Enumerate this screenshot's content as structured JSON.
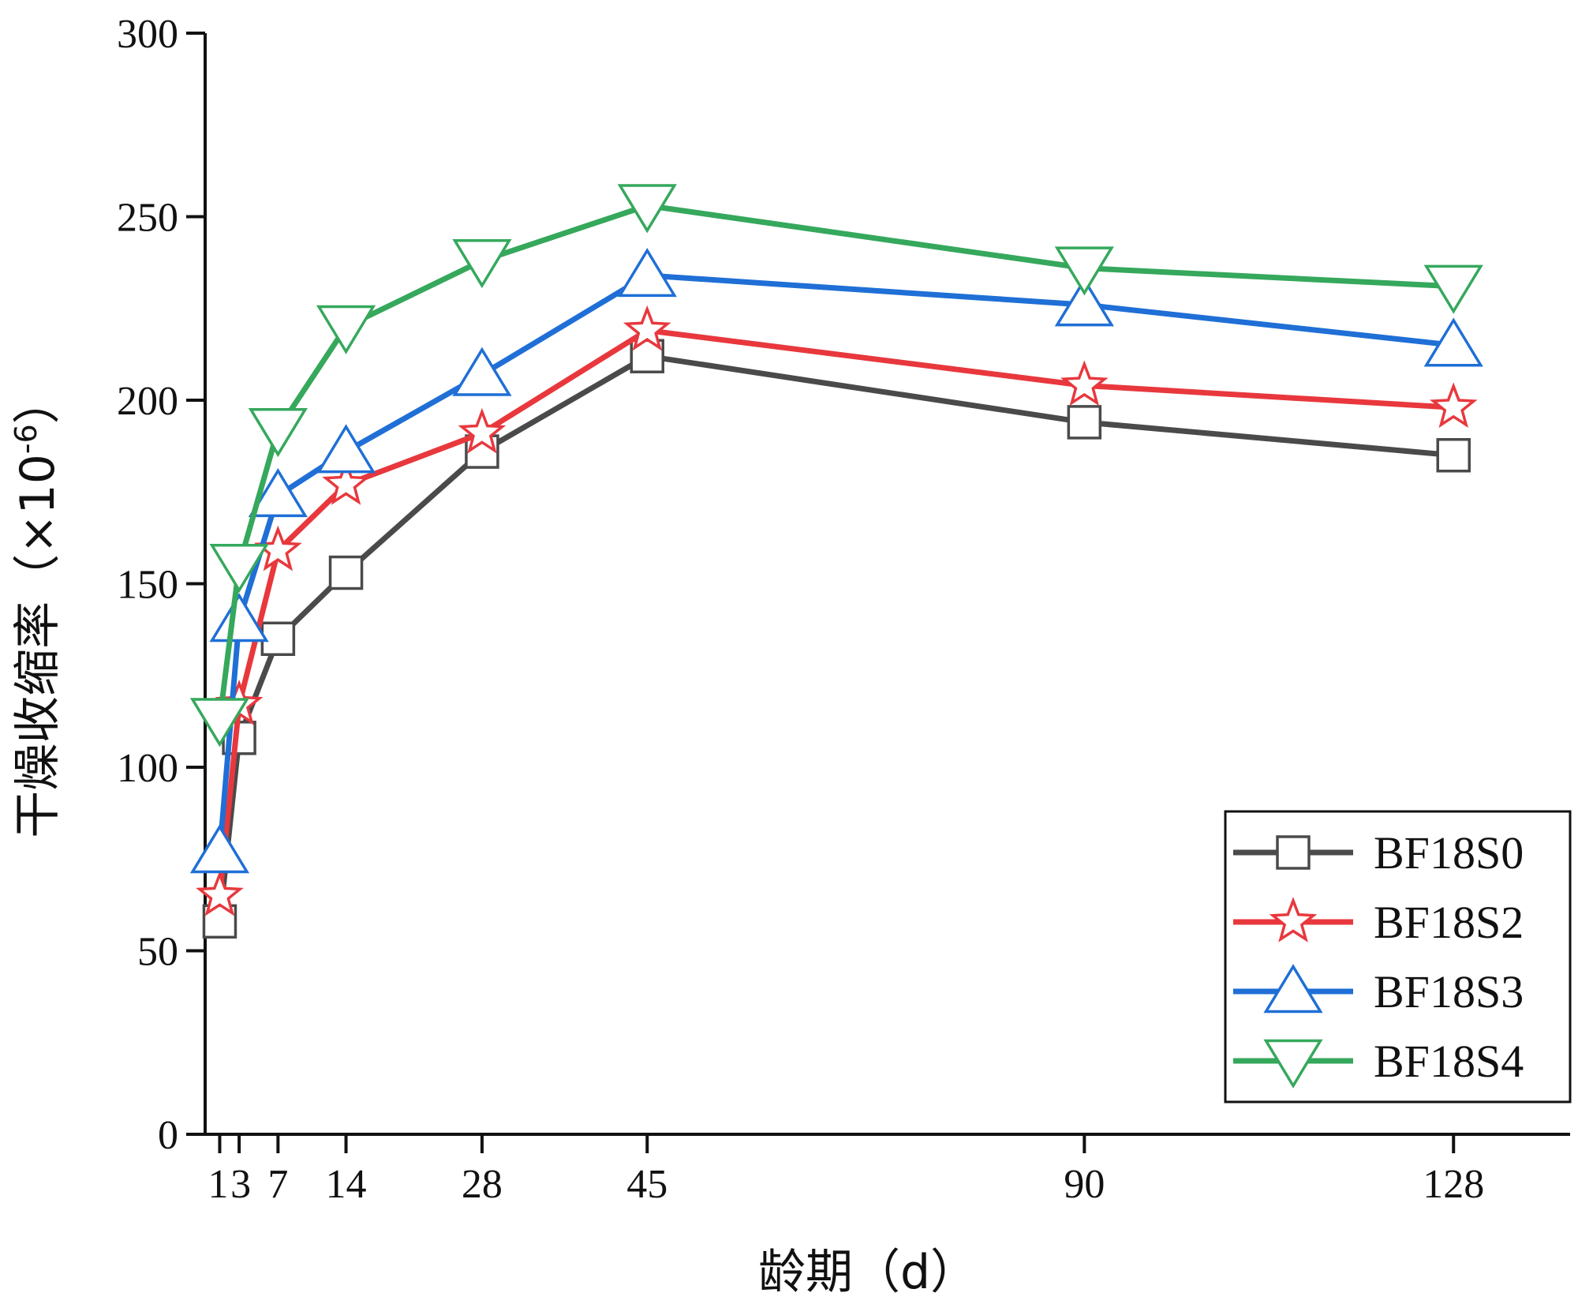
{
  "chart_data": {
    "type": "line",
    "title": "",
    "xlabel": "龄期（d）",
    "ylabel": "干燥收缩率（×10⁻⁶）",
    "ylabel_main": "干燥收缩率（×10",
    "ylabel_exp": "-6",
    "ylabel_tail": "）",
    "x": [
      1,
      3,
      7,
      14,
      28,
      45,
      90,
      128
    ],
    "x_tick_labels": [
      "1",
      "3",
      "7",
      "14",
      "28",
      "45",
      "90",
      "128"
    ],
    "xlim": [
      -0.5,
      140
    ],
    "ylim": [
      0,
      300
    ],
    "y_ticks": [
      0,
      50,
      100,
      150,
      200,
      250,
      300
    ],
    "y_tick_labels": [
      "0",
      "50",
      "100",
      "150",
      "200",
      "250",
      "300"
    ],
    "grid": false,
    "legend_position": "bottom-right",
    "series": [
      {
        "name": "BF18S0",
        "marker": "square",
        "color": "#4a4a4a",
        "values": [
          58,
          108,
          135,
          153,
          186,
          212,
          194,
          185
        ]
      },
      {
        "name": "BF18S2",
        "marker": "star",
        "color": "#e8383d",
        "values": [
          65,
          117,
          159,
          177,
          191,
          219,
          204,
          198
        ]
      },
      {
        "name": "BF18S3",
        "marker": "triangle-up",
        "color": "#1f6fd6",
        "values": [
          77,
          140,
          174,
          186,
          207,
          234,
          226,
          215
        ]
      },
      {
        "name": "BF18S4",
        "marker": "triangle-down",
        "color": "#35a85c",
        "values": [
          113,
          155,
          192,
          220,
          238,
          253,
          236,
          231
        ]
      }
    ]
  }
}
